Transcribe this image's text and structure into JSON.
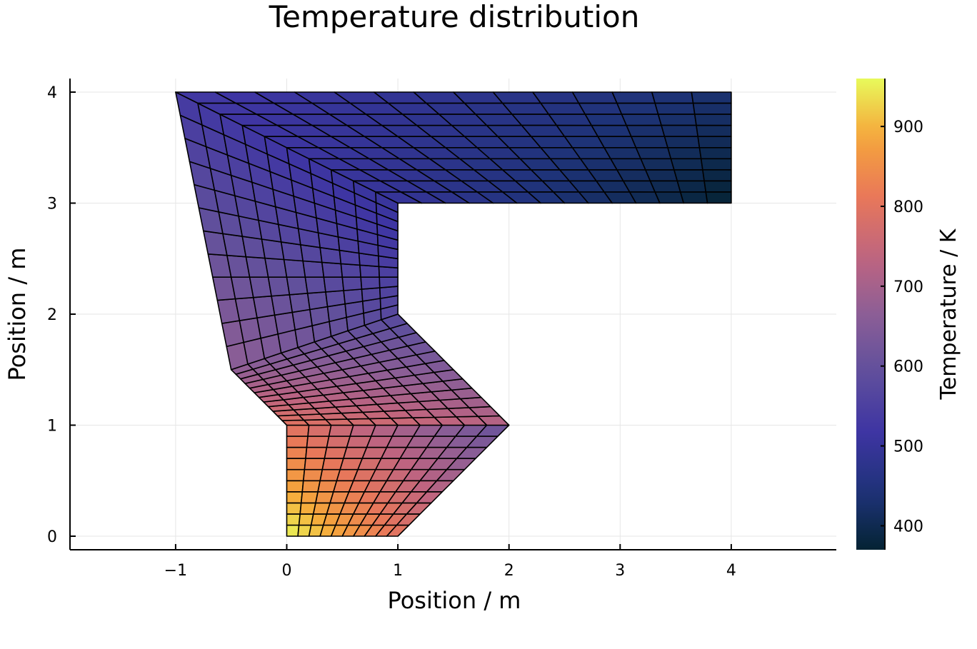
{
  "chart_data": {
    "type": "heatmap",
    "title": "Temperature distribution",
    "xlabel": "Position / m",
    "ylabel": "Position / m",
    "xlim": [
      -1.95,
      4.95
    ],
    "ylim": [
      -0.12,
      4.12
    ],
    "xticks": [
      -1,
      0,
      1,
      2,
      3,
      4
    ],
    "xtick_labels": [
      "−1",
      "0",
      "1",
      "2",
      "3",
      "4"
    ],
    "yticks": [
      0,
      1,
      2,
      3,
      4
    ],
    "ytick_labels": [
      "0",
      "1",
      "2",
      "3",
      "4"
    ],
    "grid": true,
    "colorbar": {
      "label": "Temperature / K",
      "colormap": "thermal",
      "range": [
        370,
        960
      ],
      "ticks": [
        400,
        500,
        600,
        700,
        800,
        900
      ],
      "tick_labels": [
        "400",
        "500",
        "600",
        "700",
        "800",
        "900"
      ]
    },
    "domain_outline": [
      [
        0,
        0
      ],
      [
        1,
        0
      ],
      [
        2,
        1
      ],
      [
        1,
        2
      ],
      [
        1,
        3
      ],
      [
        4,
        3
      ],
      [
        4,
        4
      ],
      [
        -1,
        4
      ],
      [
        -0.5,
        1.5
      ],
      [
        0,
        1
      ]
    ],
    "blocks": [
      {
        "name": "bottom",
        "nu": 10,
        "nv": 10,
        "corners": [
          [
            0,
            0
          ],
          [
            1,
            0
          ],
          [
            2,
            1
          ],
          [
            0,
            1
          ]
        ],
        "temps": [
          960,
          800,
          600,
          800
        ]
      },
      {
        "name": "middle",
        "nu": 10,
        "nv": 12,
        "corners": [
          [
            0,
            1
          ],
          [
            2,
            1
          ],
          [
            1,
            2
          ],
          [
            -0.5,
            1.5
          ]
        ],
        "temps": [
          800,
          725,
          570,
          670
        ]
      },
      {
        "name": "upper-left",
        "nu": 10,
        "nv": 12,
        "corners": [
          [
            -0.5,
            1.5
          ],
          [
            1,
            2
          ],
          [
            1,
            3
          ],
          [
            -1,
            4
          ]
        ],
        "temps": [
          670,
          570,
          500,
          530
        ]
      },
      {
        "name": "upper-right",
        "nu": 10,
        "nv": 14,
        "corners": [
          [
            -1,
            4
          ],
          [
            1,
            3
          ],
          [
            4,
            3
          ],
          [
            4,
            4
          ]
        ],
        "temps": [
          530,
          500,
          370,
          430
        ]
      }
    ]
  }
}
